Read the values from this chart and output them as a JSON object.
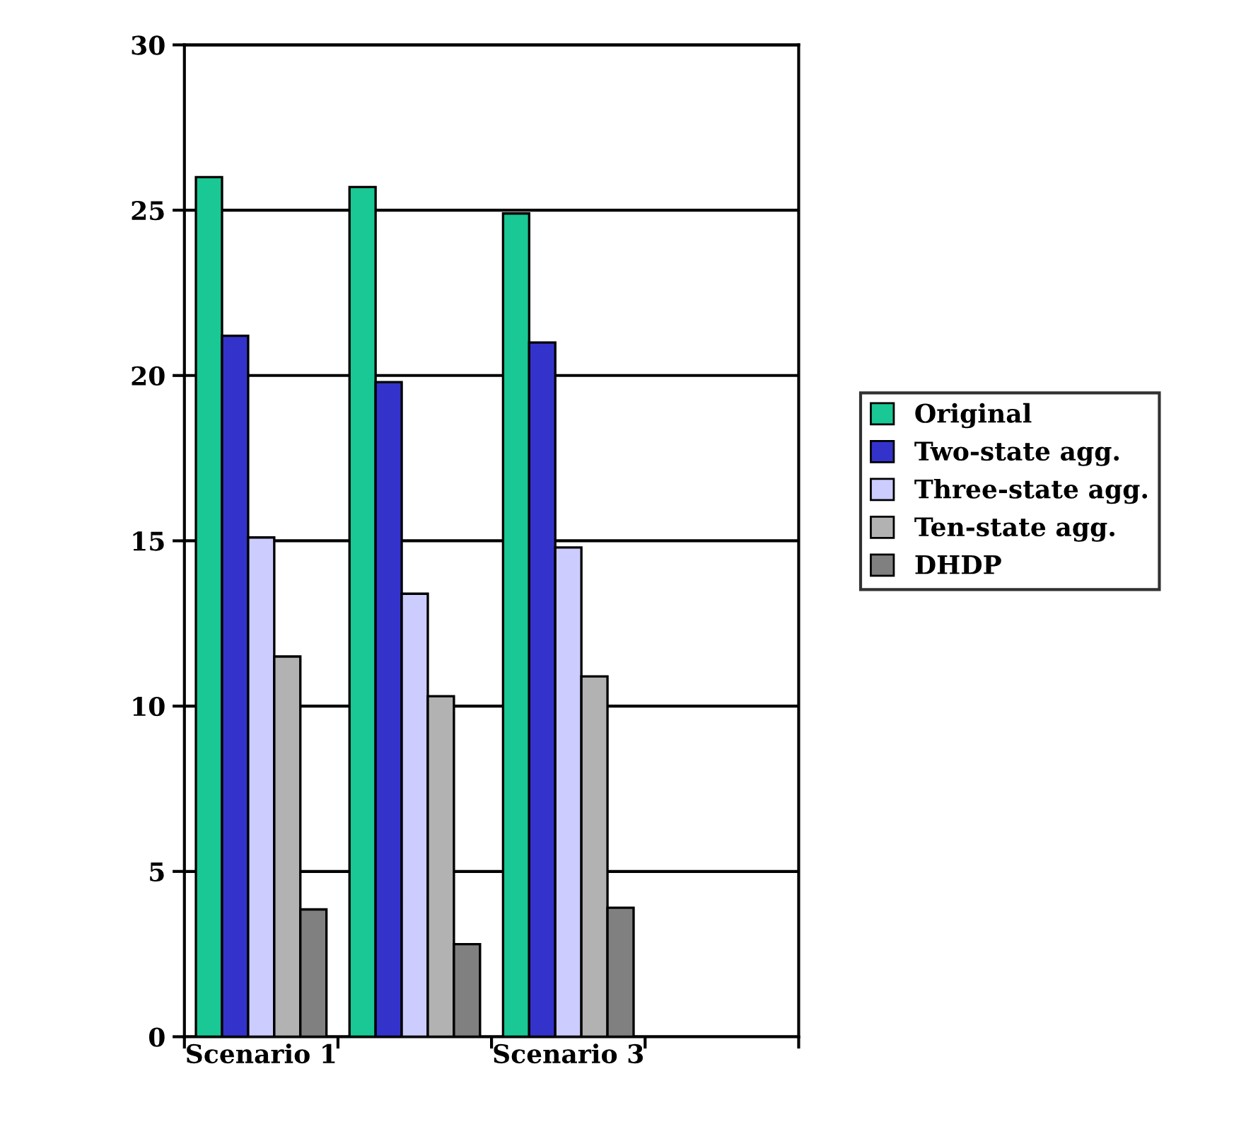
{
  "chart_data": {
    "type": "bar",
    "categories": [
      "Scenario 1",
      null,
      "Scenario 3",
      null
    ],
    "series": [
      {
        "name": "Original",
        "color": "#19c894",
        "values": [
          26.0,
          25.7,
          24.9,
          null
        ]
      },
      {
        "name": "Two-state agg.",
        "color": "#3333cc",
        "values": [
          21.2,
          19.8,
          21.0,
          null
        ]
      },
      {
        "name": "Three-state agg.",
        "color": "#ccccff",
        "values": [
          15.1,
          13.4,
          14.8,
          null
        ]
      },
      {
        "name": "Ten-state agg.",
        "color": "#b2b2b2",
        "values": [
          11.5,
          10.3,
          10.9,
          null
        ]
      },
      {
        "name": "DHDP",
        "color": "#808080",
        "values": [
          3.85,
          2.8,
          3.9,
          null
        ]
      }
    ],
    "ylim": [
      0,
      30
    ],
    "yticks": [
      0,
      5,
      10,
      15,
      20,
      25,
      30
    ],
    "grid": "y",
    "legend": "right"
  }
}
